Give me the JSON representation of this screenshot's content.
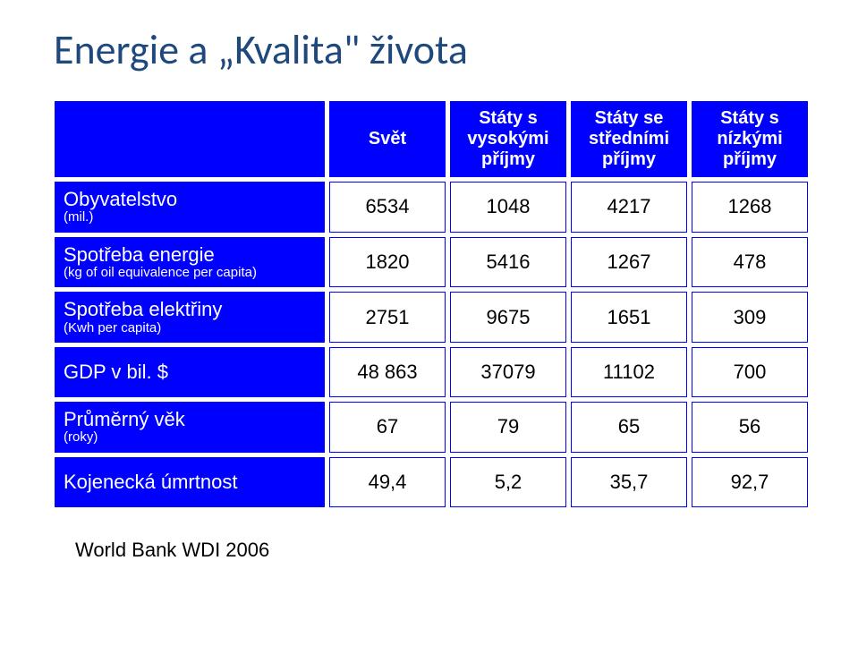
{
  "title": "Energie a „Kvalita\" života",
  "table": {
    "border_color": "#0000ff",
    "header_bg": "#0000ff",
    "header_text_color": "#ffffff",
    "cell_bg": "#ffffff",
    "columns": [
      {
        "line1": "Svět",
        "line2": ""
      },
      {
        "line1": "Státy s",
        "line2": "vysokými",
        "line3": "příjmy"
      },
      {
        "line1": "Státy se",
        "line2": "středními",
        "line3": "příjmy"
      },
      {
        "line1": "Státy s",
        "line2": "nízkými",
        "line3": "příjmy"
      }
    ],
    "rows": [
      {
        "label_main": "Obyvatelstvo",
        "label_sub": "(mil.)",
        "values": [
          "6534",
          "1048",
          "4217",
          "1268"
        ]
      },
      {
        "label_main": "Spotřeba energie",
        "label_sub": "(kg of oil equivalence per capita)",
        "values": [
          "1820",
          "5416",
          "1267",
          "478"
        ]
      },
      {
        "label_main": "Spotřeba elektřiny",
        "label_sub": "(Kwh per capita)",
        "values": [
          "2751",
          "9675",
          "1651",
          "309"
        ]
      },
      {
        "label_main": "GDP v bil. $",
        "label_sub": "",
        "values": [
          "48 863",
          "37079",
          "11102",
          "700"
        ]
      },
      {
        "label_main": "Průměrný věk",
        "label_sub": "(roky)",
        "values": [
          "67",
          "79",
          "65",
          "56"
        ]
      },
      {
        "label_main": "Kojenecká úmrtnost",
        "label_sub": "",
        "values": [
          "49,4",
          "5,2",
          "35,7",
          "92,7"
        ]
      }
    ]
  },
  "source": "World Bank WDI 2006"
}
